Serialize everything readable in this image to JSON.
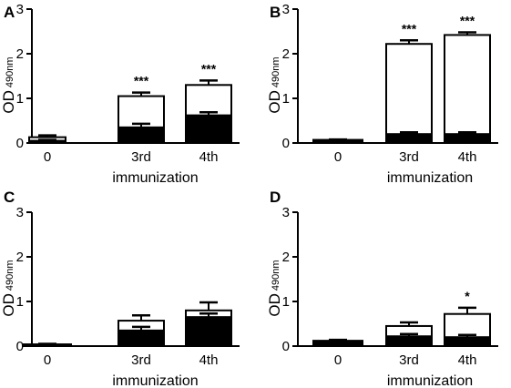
{
  "chart_data": [
    {
      "panel": "A",
      "type": "bar",
      "categories": [
        "0",
        "3rd",
        "4th"
      ],
      "xlabel": "immunization",
      "ylabel": "OD",
      "ylabel_sub": "490nm",
      "ylim": [
        0,
        3
      ],
      "yticks": [
        "0",
        "1",
        "2",
        "3"
      ],
      "series": [
        {
          "fill": "#000000",
          "values": [
            0.05,
            0.35,
            0.62
          ],
          "err": [
            0.02,
            0.08,
            0.07
          ]
        },
        {
          "fill": "#ffffff",
          "values": [
            0.13,
            1.05,
            1.3
          ],
          "err": [
            0.04,
            0.08,
            0.1
          ]
        }
      ],
      "significance": [
        "",
        "***",
        "***"
      ]
    },
    {
      "panel": "B",
      "type": "bar",
      "categories": [
        "0",
        "3rd",
        "4th"
      ],
      "xlabel": "immunization",
      "ylabel": "OD",
      "ylabel_sub": "490nm",
      "ylim": [
        0,
        3
      ],
      "yticks": [
        "0",
        "1",
        "2",
        "3"
      ],
      "series": [
        {
          "fill": "#000000",
          "values": [
            0.05,
            0.2,
            0.2
          ],
          "err": [
            0.01,
            0.04,
            0.04
          ]
        },
        {
          "fill": "#ffffff",
          "values": [
            0.07,
            2.22,
            2.42
          ],
          "err": [
            0.01,
            0.08,
            0.06
          ]
        }
      ],
      "significance": [
        "",
        "***",
        "***"
      ]
    },
    {
      "panel": "C",
      "type": "bar",
      "categories": [
        "0",
        "3rd",
        "4th"
      ],
      "xlabel": "immunization",
      "ylabel": "OD",
      "ylabel_sub": "490nm",
      "ylim": [
        0,
        3
      ],
      "yticks": [
        "0",
        "1",
        "2",
        "3"
      ],
      "series": [
        {
          "fill": "#000000",
          "values": [
            0.03,
            0.35,
            0.65
          ],
          "err": [
            0.01,
            0.08,
            0.08
          ]
        },
        {
          "fill": "#ffffff",
          "values": [
            0.04,
            0.57,
            0.8
          ],
          "err": [
            0.01,
            0.12,
            0.18
          ]
        }
      ],
      "significance": [
        "",
        "",
        ""
      ]
    },
    {
      "panel": "D",
      "type": "bar",
      "categories": [
        "0",
        "3rd",
        "4th"
      ],
      "xlabel": "immunization",
      "ylabel": "OD",
      "ylabel_sub": "490nm",
      "ylim": [
        0,
        3
      ],
      "yticks": [
        "0",
        "1",
        "2",
        "3"
      ],
      "series": [
        {
          "fill": "#000000",
          "values": [
            0.1,
            0.22,
            0.2
          ],
          "err": [
            0.02,
            0.05,
            0.05
          ]
        },
        {
          "fill": "#ffffff",
          "values": [
            0.12,
            0.45,
            0.72
          ],
          "err": [
            0.02,
            0.08,
            0.14
          ]
        }
      ],
      "significance": [
        "",
        "",
        "*"
      ]
    }
  ]
}
